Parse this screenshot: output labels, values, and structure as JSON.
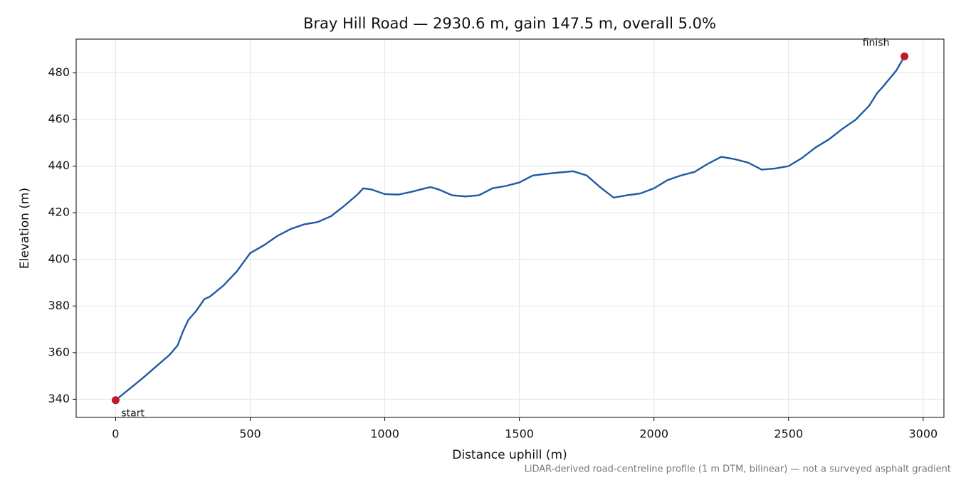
{
  "chart_data": {
    "type": "line",
    "title": "Bray Hill Road — 2930.6 m, gain 147.5 m, overall 5.0%",
    "xlabel": "Distance uphill (m)",
    "ylabel": "Elevation (m)",
    "footnote": "LiDAR-derived road-centreline profile (1 m DTM, bilinear) — not a surveyed asphalt gradient",
    "x": [
      0,
      50,
      100,
      150,
      200,
      230,
      250,
      270,
      300,
      330,
      350,
      400,
      450,
      500,
      550,
      600,
      650,
      700,
      750,
      800,
      850,
      900,
      920,
      950,
      1000,
      1050,
      1100,
      1150,
      1170,
      1200,
      1250,
      1300,
      1350,
      1400,
      1450,
      1500,
      1550,
      1600,
      1650,
      1700,
      1750,
      1800,
      1850,
      1900,
      1950,
      2000,
      2050,
      2100,
      2150,
      2200,
      2250,
      2300,
      2350,
      2400,
      2450,
      2500,
      2550,
      2600,
      2650,
      2700,
      2750,
      2800,
      2830,
      2850,
      2900,
      2930.6
    ],
    "series": [
      {
        "name": "Elevation",
        "color": "#1f5aa6",
        "values": [
          339.6,
          344.3,
          349,
          354,
          359,
          363,
          369,
          374,
          378,
          383,
          384,
          388.7,
          394.8,
          402.7,
          406,
          410,
          413,
          415,
          416,
          418.5,
          423,
          428,
          430.5,
          430,
          428,
          427.8,
          429,
          430.5,
          431,
          430,
          427.5,
          427,
          427.5,
          430.5,
          431.5,
          433,
          436,
          436.7,
          437.3,
          437.8,
          436,
          431,
          426.5,
          427.5,
          428.3,
          430.5,
          434,
          436,
          437.5,
          441,
          444,
          443,
          441.5,
          438.5,
          439,
          440,
          443.5,
          448,
          451.5,
          456,
          460,
          466,
          471.5,
          474,
          481,
          487.1
        ]
      }
    ],
    "annotations": [
      {
        "text": "start",
        "x": 0,
        "y": 339.6
      },
      {
        "text": "finish",
        "x": 2930.6,
        "y": 487.1
      }
    ],
    "marker_color": "#c0182a",
    "xlim": [
      -146.5,
      3077.1
    ],
    "ylim": [
      332.2,
      494.5
    ],
    "xticks": [
      0,
      500,
      1000,
      1500,
      2000,
      2500,
      3000
    ],
    "yticks": [
      340,
      360,
      380,
      400,
      420,
      440,
      460,
      480
    ],
    "grid": true
  }
}
